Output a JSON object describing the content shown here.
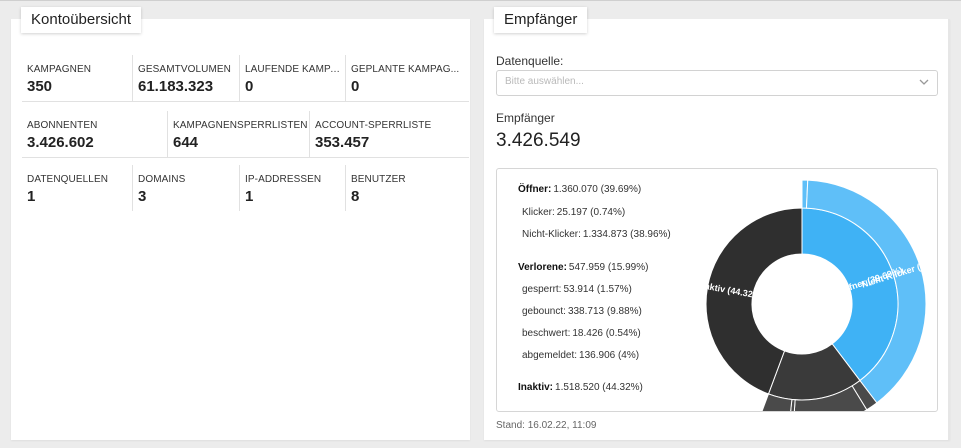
{
  "overview": {
    "title": "Kontoübersicht",
    "row1": [
      {
        "label": "KAMPAGNEN",
        "value": "350"
      },
      {
        "label": "GESAMTVOLUMEN",
        "value": "61.183.323"
      },
      {
        "label": "LAUFENDE KAMPAG...",
        "value": "0"
      },
      {
        "label": "GEPLANTE KAMPAG...",
        "value": "0"
      }
    ],
    "row2": [
      {
        "label": "ABONNENTEN",
        "value": "3.426.602"
      },
      {
        "label": "KAMPAGNENSPERRLISTEN",
        "value": "644"
      },
      {
        "label": "ACCOUNT-SPERRLISTE",
        "value": "353.457"
      }
    ],
    "row3": [
      {
        "label": "DATENQUELLEN",
        "value": "1"
      },
      {
        "label": "DOMAINS",
        "value": "3"
      },
      {
        "label": "IP-ADDRESSEN",
        "value": "1"
      },
      {
        "label": "BENUTZER",
        "value": "8"
      }
    ]
  },
  "recipients": {
    "title": "Empfänger",
    "source_label": "Datenquelle:",
    "source_placeholder": "Bitte auswählen...",
    "count_label": "Empfänger",
    "count_value": "3.426.549",
    "stand": "Stand: 16.02.22, 11:09",
    "legend": {
      "oeffner": {
        "label": "Öffner:",
        "value": "1.360.070 (39.69%)"
      },
      "klicker": {
        "label": "Klicker:",
        "value": "25.197 (0.74%)"
      },
      "nichtklicker": {
        "label": "Nicht-Klicker:",
        "value": "1.334.873 (38.96%)"
      },
      "verlorene": {
        "label": "Verlorene:",
        "value": "547.959 (15.99%)"
      },
      "gesperrt": {
        "label": "gesperrt:",
        "value": "53.914 (1.57%)"
      },
      "gebounct": {
        "label": "gebounct:",
        "value": "338.713 (9.88%)"
      },
      "beschwert": {
        "label": "beschwert:",
        "value": "18.426 (0.54%)"
      },
      "abgemeldet": {
        "label": "abgemeldet:",
        "value": "136.906 (4%)"
      },
      "inaktiv": {
        "label": "Inaktiv:",
        "value": "1.518.520 (44.32%)"
      }
    },
    "sunburst_labels": {
      "inner_oeffner": "Öffner (39.69%)",
      "inner_inaktiv": "Inaktiv (44.32%)",
      "outer_nichtklicker": "Nicht-Klicker (38.96%)"
    },
    "colors": {
      "oeffner": "#3fb2f5",
      "outer_light": "#5fbff8",
      "inaktiv": "#2f2f2f",
      "verlorene": "#3a3a3a",
      "outer_dark": "#4a4a4a"
    }
  }
}
